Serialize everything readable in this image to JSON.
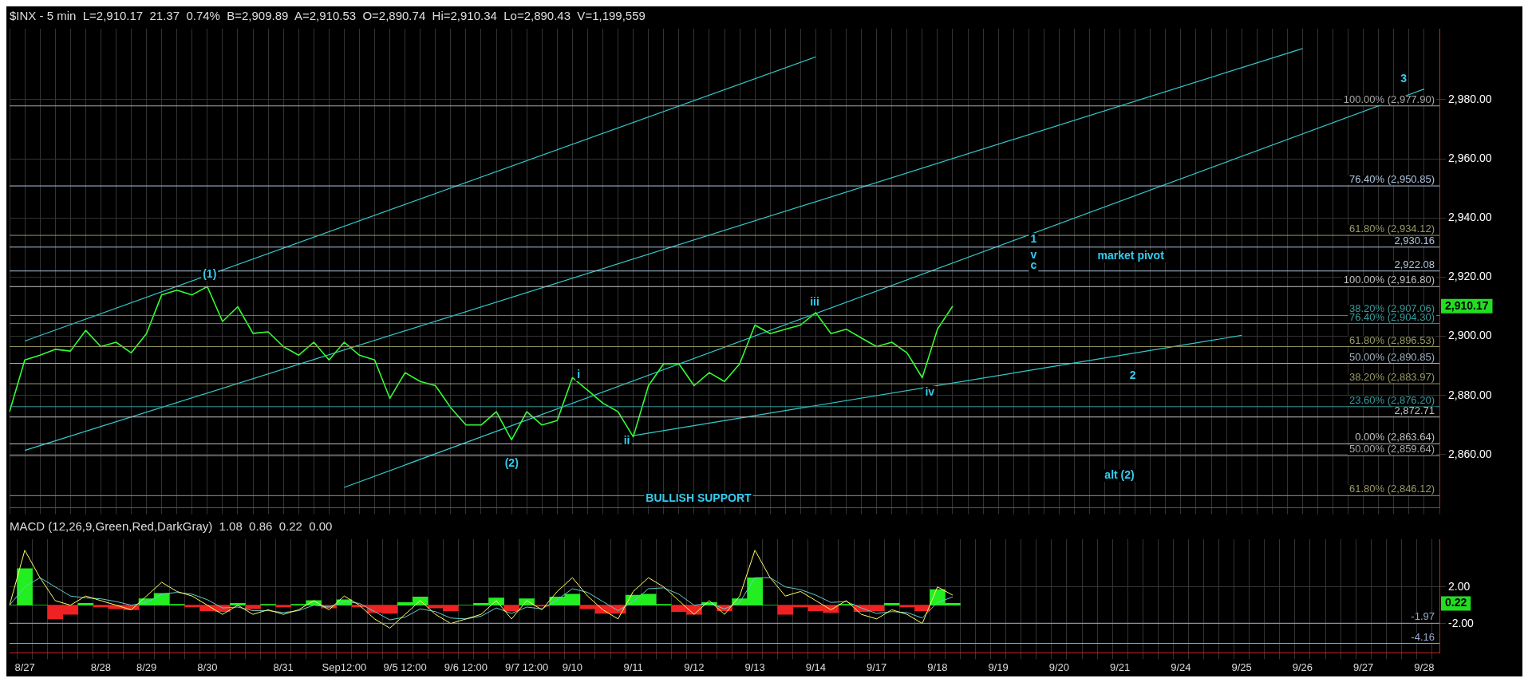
{
  "chart_data": [
    {
      "type": "line",
      "title": "$INX - 5 min  L=2,910.17  21.37  0.74%  B=2,909.89  A=2,910.53  O=2,890.74  Hi=2,910.34  Lo=2,890.43  V=1,199,559",
      "categories": [
        null,
        "8/27",
        null,
        null,
        null,
        null,
        "8/28",
        null,
        null,
        "8/29",
        null,
        null,
        null,
        "8/30",
        null,
        null,
        null,
        null,
        "8/31",
        null,
        null,
        null,
        "Sep12:00",
        null,
        null,
        null,
        "9/5 12:00",
        null,
        null,
        null,
        "9/6 12:00",
        null,
        null,
        null,
        "9/7 12:00",
        null,
        null,
        "9/10",
        null,
        null,
        null,
        "9/11",
        null,
        null,
        null,
        "9/12",
        null,
        null,
        null,
        "9/13",
        null,
        null,
        null,
        "9/14",
        null,
        null,
        null,
        "9/17",
        null,
        null,
        null,
        "9/18",
        null,
        null,
        null,
        "9/19",
        null,
        null,
        null,
        "9/20",
        null,
        null,
        null,
        "9/21",
        null,
        null,
        null,
        "9/24",
        null,
        null,
        null,
        "9/25",
        null,
        null,
        null,
        "9/26",
        null,
        null,
        null,
        "9/27",
        null,
        null,
        null,
        "9/28",
        null
      ],
      "series": [
        {
          "color": "#33ff33",
          "values": [
            2874.5,
            2892,
            2893.6,
            2895.6,
            2895,
            2902,
            2896.5,
            2898,
            2894.4,
            2900.9,
            2914,
            2915.6,
            2914,
            2916.8,
            2905,
            2910,
            2901,
            2901.5,
            2896.5,
            2893.6,
            2898,
            2892,
            2898,
            2893.6,
            2892,
            2879,
            2887.7,
            2884.7,
            2883.3,
            2875.9,
            2870,
            2870,
            2874.5,
            2865,
            2874.5,
            2870,
            2871.5,
            2886,
            2881.8,
            2877.4,
            2874.5,
            2866,
            2883.3,
            2890.7,
            2890.7,
            2883.3,
            2887.7,
            2884.7,
            2890.7,
            2903.8,
            2900.9,
            2902.4,
            2903.8,
            2908,
            2900.9,
            2902.4,
            2899.4,
            2896.5,
            2898,
            2894.4,
            2886,
            2902.4,
            2910.2,
            null,
            null,
            null,
            null,
            null,
            null,
            null,
            null,
            null,
            null,
            null,
            null,
            null,
            null,
            null,
            null,
            null,
            null,
            null,
            null,
            null,
            null,
            null,
            null,
            null,
            null,
            null,
            null,
            null,
            null,
            null,
            null
          ]
        },
        {
          "type": "line",
          "color": "#33cccc",
          "x": [
            "8/27",
            "9/14"
          ],
          "values": [
            2898.4,
            2994.5
          ]
        },
        {
          "type": "line",
          "color": "#33cccc",
          "x": [
            "8/27",
            "9/26"
          ],
          "values": [
            2861.4,
            2997.3
          ]
        },
        {
          "type": "line",
          "color": "#33cccc",
          "x": [
            "Sep12:00",
            "9/28"
          ],
          "values": [
            2848.9,
            2983.6
          ]
        },
        {
          "type": "line",
          "color": "#33cccc",
          "x": [
            "9/11",
            "9/25"
          ],
          "values": [
            2866.4,
            2900.3
          ]
        }
      ],
      "ylim": [
        2842,
        3004
      ],
      "yticks": [
        {
          "value": 2860,
          "label": "2,860.00"
        },
        {
          "value": 2880,
          "label": "2,880.00"
        },
        {
          "value": 2900,
          "label": "2,900.00"
        },
        {
          "value": 2920,
          "label": "2,920.00"
        },
        {
          "value": 2940,
          "label": "2,940.00"
        },
        {
          "value": 2960,
          "label": "2,960.00"
        },
        {
          "value": 2980,
          "label": "2,980.00"
        }
      ],
      "tick_labels": "y",
      "grid": true,
      "ref_lines": [
        {
          "axis": "y",
          "value": 2977.9,
          "label": "100.00% (2,977.90)",
          "color": "#a8a8a8"
        },
        {
          "axis": "y",
          "value": 2950.85,
          "label": "76.40% (2,950.85)",
          "color": "#b0c4de"
        },
        {
          "axis": "y",
          "value": 2934.12,
          "label": "61.80% (2,934.12)",
          "color": "#999966"
        },
        {
          "axis": "y",
          "value": 2930.16,
          "label": "2,930.16",
          "color": "#b0c4de"
        },
        {
          "axis": "y",
          "value": 2922.08,
          "label": "2,922.08",
          "color": "#b0c4de"
        },
        {
          "axis": "y",
          "value": 2916.8,
          "label": "100.00% (2,916.80)",
          "color": "#c0c0c0"
        },
        {
          "axis": "y",
          "value": 2907.06,
          "label": "38.20% (2,907.06)",
          "color": "#3a9a9a"
        },
        {
          "axis": "y",
          "value": 2904.3,
          "label": "76.40% (2,904.30)",
          "color": "#3a9a9a"
        },
        {
          "axis": "y",
          "value": 2896.53,
          "label": "61.80% (2,896.53)",
          "color": "#999966"
        },
        {
          "axis": "y",
          "value": 2890.85,
          "label": "50.00% (2,890.85)",
          "color": "#a0b0c0"
        },
        {
          "axis": "y",
          "value": 2883.97,
          "label": "38.20% (2,883.97)",
          "color": "#999966"
        },
        {
          "axis": "y",
          "value": 2876.2,
          "label": "23.60% (2,876.20)",
          "color": "#3a9a9a"
        },
        {
          "axis": "y",
          "value": 2872.71,
          "label": "2,872.71",
          "color": "#c0c0c0"
        },
        {
          "axis": "y",
          "value": 2863.64,
          "label": "0.00% (2,863.64)",
          "color": "#c0c0c0"
        },
        {
          "axis": "y",
          "value": 2859.64,
          "label": "50.00% (2,859.64)",
          "color": "#a8a8a8"
        },
        {
          "axis": "y",
          "value": 2846.12,
          "label": "61.80% (2,846.12)",
          "color": "#999966"
        }
      ],
      "annotations": [
        "(1)",
        "i",
        "ii",
        "iii",
        "iv",
        "1",
        "v",
        "c",
        "market pivot",
        "2",
        "3",
        "(2)",
        "alt (2)",
        "BULLISH SUPPORT",
        "2,910.17"
      ]
    },
    {
      "type": "line",
      "title": "MACD (12,26,9,Green,Red,DarkGray)  1.08  0.86  0.22  0.00",
      "categories": [
        null,
        "8/27",
        null,
        null,
        null,
        null,
        "8/28",
        null,
        null,
        "8/29",
        null,
        null,
        null,
        "8/30",
        null,
        null,
        null,
        null,
        "8/31",
        null,
        null,
        null,
        "Sep12:00",
        null,
        null,
        null,
        "9/5 12:00",
        null,
        null,
        null,
        "9/6 12:00",
        null,
        null,
        null,
        "9/7 12:00",
        null,
        null,
        "9/10",
        null,
        null,
        null,
        "9/11",
        null,
        null,
        null,
        "9/12",
        null,
        null,
        null,
        "9/13",
        null,
        null,
        null,
        "9/14",
        null,
        null,
        null,
        "9/17",
        null,
        null,
        null,
        "9/18",
        null,
        null,
        null,
        "9/19",
        null,
        null,
        null,
        "9/20",
        null,
        null,
        null,
        "9/21",
        null,
        null,
        null,
        "9/24",
        null,
        null,
        null,
        "9/25",
        null,
        null,
        null,
        "9/26",
        null,
        null,
        null,
        "9/27",
        null,
        null,
        null,
        "9/28",
        null
      ],
      "series": [
        {
          "type": "bar",
          "values": [
            0,
            4,
            0,
            -1.5,
            -1,
            0.2,
            -0.2,
            -0.4,
            -0.5,
            0.7,
            1.3,
            0.1,
            -0.2,
            -0.6,
            -0.7,
            0.2,
            -0.4,
            0.1,
            -0.2,
            0.1,
            0.5,
            -0.3,
            0.6,
            -0.2,
            -0.8,
            -0.9,
            0.3,
            0.9,
            -0.3,
            -0.6,
            0,
            0.2,
            0.8,
            -0.6,
            0.7,
            -0.1,
            0.9,
            1.2,
            -0.4,
            -0.9,
            -0.9,
            1.1,
            1.2,
            0.1,
            -0.7,
            -1,
            0.3,
            -0.6,
            0.7,
            3,
            0,
            -1,
            -0.2,
            -0.6,
            -0.8,
            0.1,
            -0.7,
            -0.6,
            0.2,
            -0.2,
            -0.6,
            1.7,
            0.2,
            null,
            null,
            null,
            null,
            null,
            null,
            null,
            null,
            null,
            null,
            null,
            null,
            null,
            null,
            null,
            null,
            null,
            null,
            null,
            null,
            null,
            null,
            null,
            null,
            null,
            null,
            null,
            null,
            null,
            null,
            null,
            null
          ],
          "colors": [
            "#22ee22",
            "#22ee22",
            "#22ee22",
            "#ee2222",
            "#ee2222",
            "#22ee22",
            "#ee2222",
            "#ee2222",
            "#ee2222",
            "#22ee22",
            "#22ee22",
            "#22ee22",
            "#ee2222",
            "#ee2222",
            "#ee2222",
            "#22ee22",
            "#ee2222",
            "#22ee22",
            "#ee2222",
            "#22ee22",
            "#22ee22",
            "#ee2222",
            "#22ee22",
            "#ee2222",
            "#ee2222",
            "#ee2222",
            "#22ee22",
            "#22ee22",
            "#ee2222",
            "#ee2222",
            "#22ee22",
            "#22ee22",
            "#22ee22",
            "#ee2222",
            "#22ee22",
            "#ee2222",
            "#22ee22",
            "#22ee22",
            "#ee2222",
            "#ee2222",
            "#ee2222",
            "#22ee22",
            "#22ee22",
            "#22ee22",
            "#ee2222",
            "#ee2222",
            "#22ee22",
            "#ee2222",
            "#22ee22",
            "#22ee22",
            "#22ee22",
            "#ee2222",
            "#ee2222",
            "#ee2222",
            "#ee2222",
            "#22ee22",
            "#ee2222",
            "#ee2222",
            "#22ee22",
            "#ee2222",
            "#ee2222",
            "#22ee22",
            "#22ee22",
            null,
            null,
            null,
            null,
            null,
            null,
            null,
            null,
            null,
            null,
            null,
            null,
            null,
            null,
            null,
            null,
            null,
            null,
            null,
            null,
            null,
            null,
            null,
            null,
            null,
            null,
            null,
            null,
            null,
            null,
            null,
            null
          ]
        },
        {
          "color": "#ffff66",
          "values": [
            0,
            6,
            3,
            0.5,
            0,
            1,
            0.5,
            0,
            -0.5,
            1,
            2.5,
            1.5,
            1,
            0,
            -1,
            0,
            -1,
            -0.5,
            -1,
            -0.5,
            0.5,
            -0.5,
            1,
            0,
            -1.5,
            -2.5,
            -1,
            0.5,
            -1,
            -2,
            -1.5,
            -1,
            0.5,
            -1.5,
            0.5,
            -0.5,
            1.5,
            3,
            1,
            -0.5,
            -1.5,
            1.5,
            3,
            2,
            0.5,
            -1,
            0.5,
            -1,
            1,
            6,
            3,
            1,
            1.5,
            0.5,
            -0.5,
            0.5,
            -1,
            -1.5,
            -0.5,
            -1,
            -2,
            2,
            1.1,
            null,
            null,
            null,
            null,
            null,
            null,
            null,
            null,
            null,
            null,
            null,
            null,
            null,
            null,
            null,
            null,
            null,
            null,
            null,
            null,
            null,
            null,
            null,
            null,
            null,
            null,
            null,
            null,
            null,
            null,
            null,
            null
          ]
        },
        {
          "color": "#66cccc",
          "values": [
            0,
            2,
            3,
            2,
            1,
            0.8,
            0.7,
            0.4,
            0,
            0.3,
            1.2,
            1.4,
            1.2,
            0.6,
            -0.3,
            -0.2,
            -0.6,
            -0.6,
            -0.8,
            -0.6,
            0,
            -0.2,
            0.4,
            0.2,
            -0.7,
            -1.6,
            -1.3,
            -0.4,
            -0.7,
            -1.4,
            -1.5,
            -1.2,
            -0.3,
            -0.9,
            -0.2,
            -0.4,
            0.6,
            1.8,
            1.4,
            0.4,
            -0.6,
            0.4,
            1.8,
            1.9,
            1.2,
            0,
            0.2,
            -0.4,
            0.3,
            3,
            3,
            2,
            1.7,
            1.1,
            0.3,
            0.4,
            -0.3,
            -0.9,
            -0.7,
            -0.8,
            -1.4,
            0.3,
            0.9,
            null,
            null,
            null,
            null,
            null,
            null,
            null,
            null,
            null,
            null,
            null,
            null,
            null,
            null,
            null,
            null,
            null,
            null,
            null,
            null,
            null,
            null,
            null,
            null,
            null,
            null,
            null,
            null,
            null,
            null,
            null,
            null
          ]
        }
      ],
      "ylim": [
        -5.2,
        7.2
      ],
      "yticks": [
        {
          "value": -2,
          "label": "-2.00"
        },
        {
          "value": 2,
          "label": "2.00"
        }
      ],
      "grid": true,
      "ref_lines": [
        {
          "axis": "y",
          "value": -1.97,
          "label": "-1.97",
          "color": "#9aaacc"
        },
        {
          "axis": "y",
          "value": -4.16,
          "label": "-4.16",
          "color": "#9aaacc"
        }
      ],
      "annotations": [
        "0.22"
      ]
    }
  ]
}
